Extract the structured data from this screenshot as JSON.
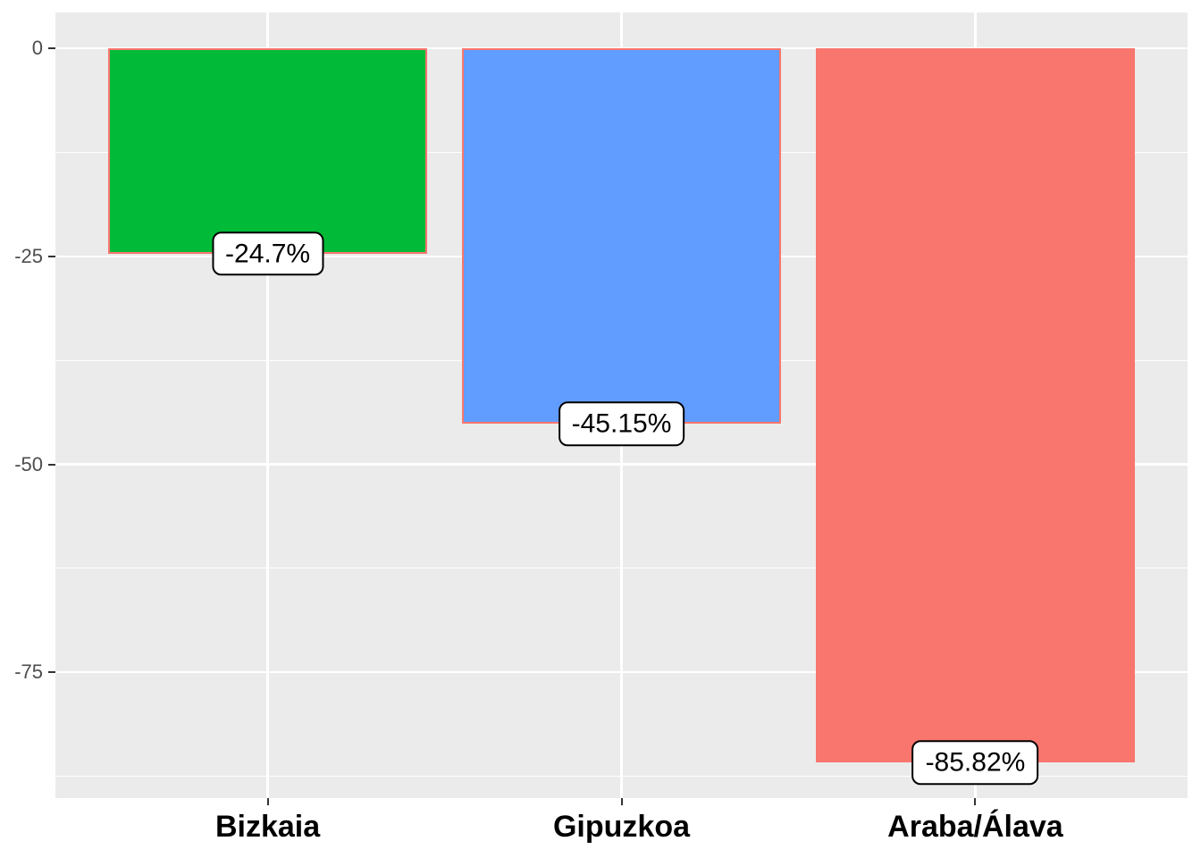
{
  "chart_data": {
    "type": "bar",
    "title": "",
    "xlabel": "",
    "ylabel": "",
    "categories": [
      "Bizkaia",
      "Gipuzkoa",
      "Araba/Álava"
    ],
    "values": [
      -24.7,
      -45.15,
      -85.82
    ],
    "value_labels": [
      "-24.7%",
      "-45.15%",
      "-85.82%"
    ],
    "bar_fill_colors": [
      "#00BA38",
      "#619CFF",
      "#F8766D"
    ],
    "bar_border_color": "#F8766D",
    "bar_width_fraction": 0.9,
    "ylim": [
      -90.11,
      4.29
    ],
    "y_major_ticks": [
      0,
      -25,
      -50,
      -75
    ],
    "y_tick_labels": [
      "0",
      "-25",
      "-50",
      "-75"
    ],
    "y_minor_ticks": [
      -12.5,
      -37.5,
      -62.5,
      -87.5
    ],
    "grid": "on",
    "legend": "none",
    "colors": {
      "panel_background": "#EBEBEB",
      "grid": "#FFFFFF",
      "axis_tick": "#333333",
      "y_axis_text": "#4D4D4D",
      "x_axis_text": "#000000",
      "label_box_fill": "#FFFFFF",
      "label_box_border": "#000000",
      "label_text": "#000000"
    }
  }
}
